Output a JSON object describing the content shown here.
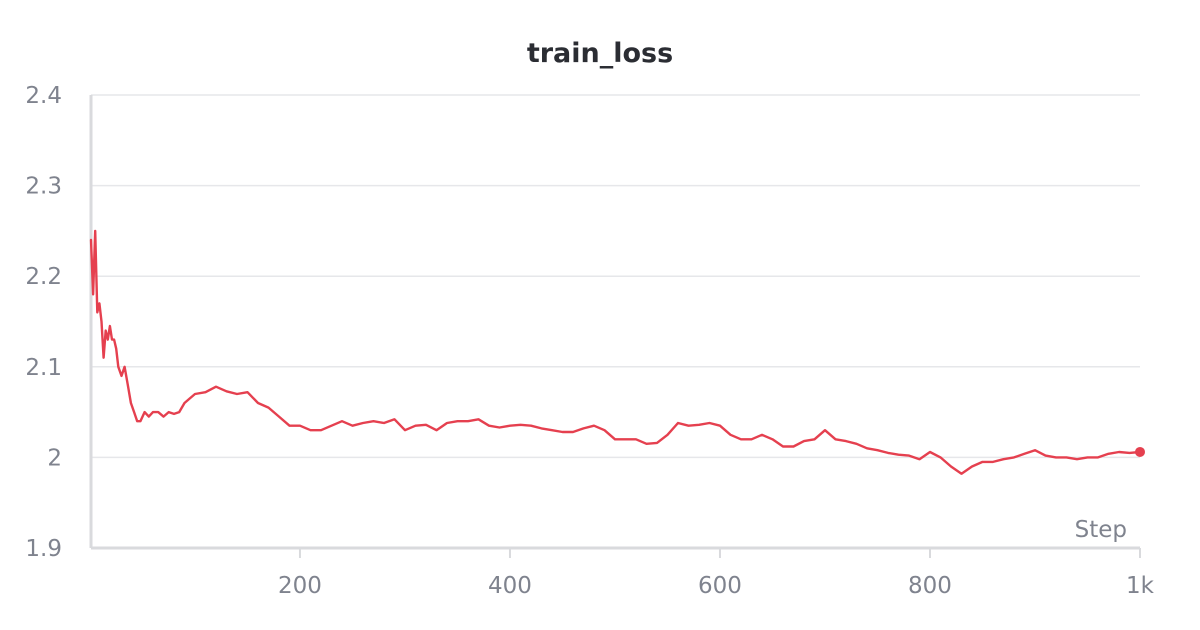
{
  "chart_data": {
    "type": "line",
    "title": "train_loss",
    "xlabel": "Step",
    "ylabel": "",
    "xlim": [
      1,
      1000
    ],
    "ylim": [
      1.9,
      2.4
    ],
    "x_ticks": [
      200,
      400,
      600,
      800,
      1000
    ],
    "x_tick_labels": [
      "200",
      "400",
      "600",
      "800",
      "1k"
    ],
    "y_ticks": [
      1.9,
      2.0,
      2.1,
      2.2,
      2.3,
      2.4
    ],
    "y_tick_labels": [
      "1.9",
      "2",
      "2.1",
      "2.2",
      "2.3",
      "2.4"
    ],
    "grid": true,
    "color": "#e5404f",
    "series": [
      {
        "x": [
          1,
          3,
          5,
          7,
          9,
          11,
          13,
          15,
          17,
          19,
          21,
          23,
          25,
          27,
          30,
          33,
          36,
          39,
          42,
          45,
          48,
          52,
          56,
          60,
          65,
          70,
          75,
          80,
          85,
          90,
          95,
          100,
          110,
          120,
          130,
          140,
          150,
          160,
          170,
          180,
          190,
          200,
          210,
          220,
          230,
          240,
          250,
          260,
          270,
          280,
          290,
          300,
          310,
          320,
          330,
          340,
          350,
          360,
          370,
          380,
          390,
          400,
          410,
          420,
          430,
          440,
          450,
          460,
          470,
          480,
          490,
          500,
          510,
          520,
          530,
          540,
          550,
          560,
          570,
          580,
          590,
          600,
          610,
          620,
          630,
          640,
          650,
          660,
          670,
          680,
          690,
          700,
          710,
          720,
          730,
          740,
          750,
          760,
          770,
          780,
          790,
          800,
          810,
          820,
          830,
          840,
          850,
          860,
          870,
          880,
          890,
          900,
          910,
          920,
          930,
          940,
          950,
          960,
          970,
          980,
          990,
          1000
        ],
        "y": [
          2.24,
          2.18,
          2.25,
          2.16,
          2.17,
          2.15,
          2.11,
          2.14,
          2.13,
          2.145,
          2.13,
          2.13,
          2.12,
          2.1,
          2.09,
          2.1,
          2.08,
          2.06,
          2.05,
          2.04,
          2.04,
          2.05,
          2.045,
          2.05,
          2.05,
          2.045,
          2.05,
          2.048,
          2.05,
          2.06,
          2.065,
          2.07,
          2.072,
          2.078,
          2.073,
          2.07,
          2.072,
          2.06,
          2.055,
          2.045,
          2.035,
          2.035,
          2.03,
          2.03,
          2.035,
          2.04,
          2.035,
          2.038,
          2.04,
          2.038,
          2.042,
          2.03,
          2.035,
          2.036,
          2.03,
          2.038,
          2.04,
          2.04,
          2.042,
          2.035,
          2.033,
          2.035,
          2.036,
          2.035,
          2.032,
          2.03,
          2.028,
          2.028,
          2.032,
          2.035,
          2.03,
          2.02,
          2.02,
          2.02,
          2.015,
          2.016,
          2.025,
          2.038,
          2.035,
          2.036,
          2.038,
          2.035,
          2.025,
          2.02,
          2.02,
          2.025,
          2.02,
          2.012,
          2.012,
          2.018,
          2.02,
          2.03,
          2.02,
          2.018,
          2.015,
          2.01,
          2.008,
          2.005,
          2.003,
          2.002,
          1.998,
          2.006,
          2.0,
          1.99,
          1.982,
          1.99,
          1.995,
          1.995,
          1.998,
          2.0,
          2.004,
          2.008,
          2.002,
          2.0,
          2.0,
          1.998,
          2.0,
          2.0,
          2.004,
          2.006,
          2.005,
          2.006
        ]
      }
    ]
  }
}
